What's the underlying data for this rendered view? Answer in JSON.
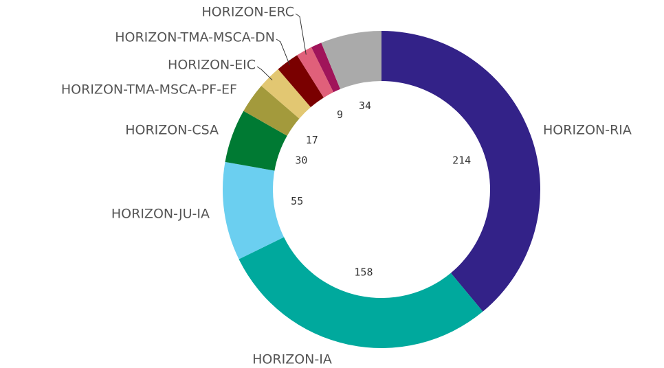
{
  "chart_data": {
    "type": "donut",
    "categories": [
      "HORIZON-RIA",
      "HORIZON-IA",
      "HORIZON-JU-IA",
      "HORIZON-CSA",
      "HORIZON-TMA-MSCA-PF-EF",
      "HORIZON-EIC",
      "HORIZON-TMA-MSCA-DN",
      "HORIZON-ERC",
      null,
      null
    ],
    "values": [
      214,
      158,
      55,
      30,
      17,
      13,
      13,
      9,
      6,
      34
    ],
    "value_labels": [
      "214",
      "158",
      "55",
      "30",
      "17",
      null,
      null,
      "9",
      null,
      "34"
    ],
    "colors": [
      "#332288",
      "#00a99d",
      "#6bcff0",
      "#007a33",
      "#a39a3c",
      "#e2c772",
      "#7a0000",
      "#e0607a",
      "#a0145a",
      "#aaaaaa"
    ]
  }
}
